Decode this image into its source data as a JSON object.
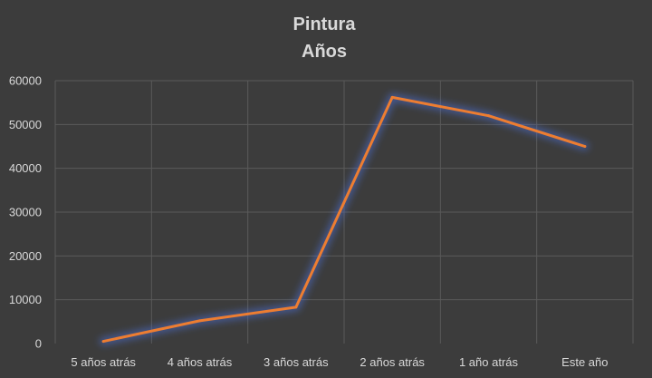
{
  "chart_data": {
    "type": "line",
    "title": "Pintura",
    "subtitle": "Años",
    "xlabel": "",
    "ylabel": "",
    "categories": [
      "5 años atrás",
      "4 años atrás",
      "3 años atrás",
      "2 años atrás",
      "1 año atrás",
      "Este año"
    ],
    "series": [
      {
        "values": [
          500,
          5200,
          8300,
          56200,
          52000,
          45000
        ]
      }
    ],
    "ylim": [
      0,
      60000
    ],
    "yticks": [
      "0",
      "10000",
      "20000",
      "30000",
      "40000",
      "50000",
      "60000"
    ],
    "grid": true,
    "legend": "none",
    "colors": {
      "background": "#3c3c3c",
      "line": "#ed7d31",
      "glow": "#4a6fd6",
      "grid": "#5a5a5a",
      "text": "#d9d9d9"
    }
  }
}
